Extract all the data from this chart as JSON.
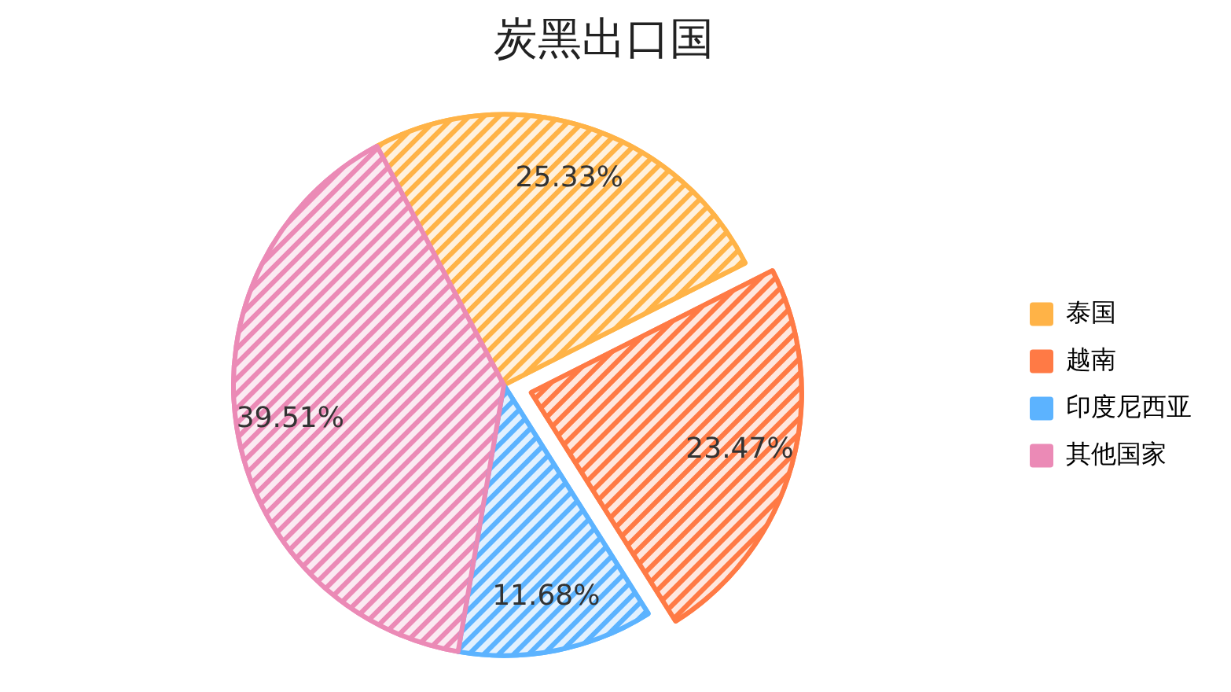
{
  "chart_data": {
    "type": "pie",
    "title": "炭黑出口国",
    "categories": [
      "泰国",
      "越南",
      "印度尼西亚",
      "其他国家"
    ],
    "values": [
      25.33,
      23.47,
      11.68,
      39.51
    ],
    "colors": [
      "#ffb347",
      "#ff7a45",
      "#5cb3ff",
      "#eb8ab6"
    ],
    "value_labels": [
      "25.33%",
      "23.47%",
      "11.68%",
      "39.51%"
    ],
    "legend": "right"
  }
}
